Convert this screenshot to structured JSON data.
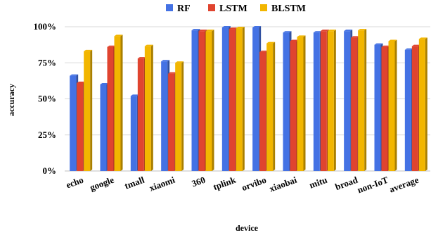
{
  "chart_data": {
    "type": "bar",
    "title": "",
    "xlabel": "device",
    "ylabel": "accuracy",
    "ylim": [
      0,
      100
    ],
    "yticks": [
      "0%",
      "25%",
      "50%",
      "75%",
      "100%"
    ],
    "grid": true,
    "legend_position": "top-center",
    "categories": [
      "echo",
      "google",
      "tmall",
      "xiaomi",
      "360",
      "tplink",
      "orvibo",
      "xiaobai",
      "mitu",
      "broad",
      "non-IoT",
      "average"
    ],
    "series": [
      {
        "name": "RF",
        "color": "#4472e4",
        "values": [
          66,
          60,
          52,
          76,
          97.5,
          99.5,
          99.5,
          96,
          96,
          97,
          87.5,
          84
        ]
      },
      {
        "name": "LSTM",
        "color": "#e0442f",
        "values": [
          61,
          86,
          78,
          67.5,
          97,
          98.5,
          82.5,
          90,
          97,
          92.5,
          86,
          86.5
        ]
      },
      {
        "name": "BLSTM",
        "color": "#f2b600",
        "values": [
          83,
          93.5,
          86.5,
          75,
          97,
          99,
          88.5,
          93,
          97,
          97.5,
          90,
          91.5
        ]
      }
    ]
  }
}
